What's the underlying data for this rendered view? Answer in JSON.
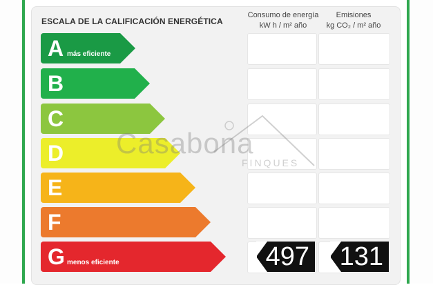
{
  "header": {
    "title": "ESCALA DE LA CALIFICACIÓN ENERGÉTICA",
    "energy_col": {
      "line1": "Consumo de energía",
      "line2": "kW h  / m² año"
    },
    "emissions_col": {
      "line1": "Emisiones",
      "line2": "kg CO₂  / m² año"
    }
  },
  "rows": [
    {
      "letter": "A",
      "tag": "más eficiente",
      "color": "#1a9a45"
    },
    {
      "letter": "B",
      "tag": "",
      "color": "#21b04b"
    },
    {
      "letter": "C",
      "tag": "",
      "color": "#8cc63f"
    },
    {
      "letter": "D",
      "tag": "",
      "color": "#ecee2a"
    },
    {
      "letter": "E",
      "tag": "",
      "color": "#f6b419"
    },
    {
      "letter": "F",
      "tag": "",
      "color": "#ec7a2d"
    },
    {
      "letter": "G",
      "tag": "menos eficiente",
      "color": "#e4272d"
    }
  ],
  "rating": {
    "letter": "G",
    "energy_value": "497",
    "emissions_value": "131"
  },
  "watermark": {
    "brand": "Casabona",
    "sub": "FINQUES"
  }
}
